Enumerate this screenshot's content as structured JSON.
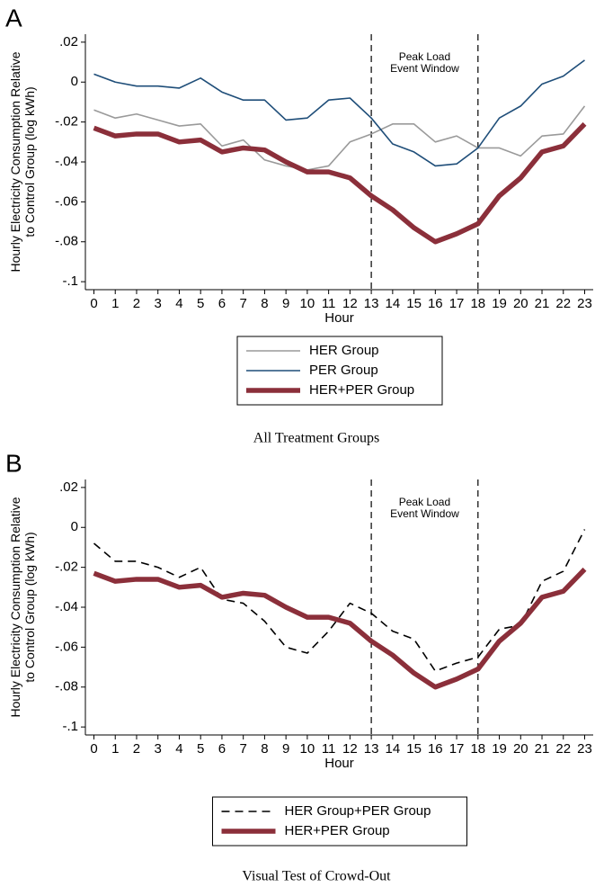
{
  "chart_data": [
    {
      "type": "line",
      "panel_label": "A",
      "caption": "All Treatment Groups",
      "ylabel": [
        "Hourly Electricity Consumption Relative",
        "to Control Group (log kWh)"
      ],
      "xlabel": "Hour",
      "annotation_lines": [
        "Peak Load",
        "Event Window"
      ],
      "vlines": [
        13,
        18
      ],
      "x": [
        0,
        1,
        2,
        3,
        4,
        5,
        6,
        7,
        8,
        9,
        10,
        11,
        12,
        13,
        14,
        15,
        16,
        17,
        18,
        19,
        20,
        21,
        22,
        23
      ],
      "xlim": [
        -0.4,
        23.4
      ],
      "xticks": [
        0,
        1,
        2,
        3,
        4,
        5,
        6,
        7,
        8,
        9,
        10,
        11,
        12,
        13,
        14,
        15,
        16,
        17,
        18,
        19,
        20,
        21,
        22,
        23
      ],
      "ylim": [
        -0.104,
        0.024
      ],
      "yticks": [
        {
          "value": 0.02,
          "label": ".02"
        },
        0,
        {
          "value": -0.02,
          "label": "-.02"
        },
        {
          "value": -0.04,
          "label": "-.04"
        },
        {
          "value": -0.06,
          "label": "-.06"
        },
        {
          "value": -0.08,
          "label": "-.08"
        },
        {
          "value": -0.1,
          "label": "-.1"
        }
      ],
      "series": [
        {
          "name": "HER Group",
          "color": "#9a9a9a",
          "width": 1.6,
          "dash": "solid",
          "values": [
            -0.014,
            -0.018,
            -0.016,
            -0.019,
            -0.022,
            -0.021,
            -0.032,
            -0.029,
            -0.039,
            -0.042,
            -0.044,
            -0.042,
            -0.03,
            -0.026,
            -0.021,
            -0.021,
            -0.03,
            -0.027,
            -0.033,
            -0.033,
            -0.037,
            -0.027,
            -0.026,
            -0.012
          ]
        },
        {
          "name": "PER Group",
          "color": "#1f4e79",
          "width": 1.6,
          "dash": "solid",
          "values": [
            0.004,
            0.0,
            -0.002,
            -0.002,
            -0.003,
            0.002,
            -0.005,
            -0.009,
            -0.009,
            -0.019,
            -0.018,
            -0.009,
            -0.008,
            -0.018,
            -0.031,
            -0.035,
            -0.042,
            -0.041,
            -0.033,
            -0.018,
            -0.012,
            -0.001,
            0.003,
            0.011
          ]
        },
        {
          "name": "HER+PER Group",
          "color": "#8b2f3a",
          "width": 5.5,
          "dash": "solid",
          "values": [
            -0.023,
            -0.027,
            -0.026,
            -0.026,
            -0.03,
            -0.029,
            -0.035,
            -0.033,
            -0.034,
            -0.04,
            -0.045,
            -0.045,
            -0.048,
            -0.057,
            -0.064,
            -0.073,
            -0.08,
            -0.076,
            -0.071,
            -0.057,
            -0.048,
            -0.035,
            -0.032,
            -0.021
          ]
        }
      ]
    },
    {
      "type": "line",
      "panel_label": "B",
      "caption": "Visual Test of Crowd-Out",
      "ylabel": [
        "Hourly Electricity Consumption Relative",
        "to Control Group (log kWh)"
      ],
      "xlabel": "Hour",
      "annotation_lines": [
        "Peak Load",
        "Event Window"
      ],
      "vlines": [
        13,
        18
      ],
      "x": [
        0,
        1,
        2,
        3,
        4,
        5,
        6,
        7,
        8,
        9,
        10,
        11,
        12,
        13,
        14,
        15,
        16,
        17,
        18,
        19,
        20,
        21,
        22,
        23
      ],
      "xlim": [
        -0.4,
        23.4
      ],
      "xticks": [
        0,
        1,
        2,
        3,
        4,
        5,
        6,
        7,
        8,
        9,
        10,
        11,
        12,
        13,
        14,
        15,
        16,
        17,
        18,
        19,
        20,
        21,
        22,
        23
      ],
      "ylim": [
        -0.104,
        0.024
      ],
      "yticks": [
        {
          "value": 0.02,
          "label": ".02"
        },
        0,
        {
          "value": -0.02,
          "label": "-.02"
        },
        {
          "value": -0.04,
          "label": "-.04"
        },
        {
          "value": -0.06,
          "label": "-.06"
        },
        {
          "value": -0.08,
          "label": "-.08"
        },
        {
          "value": -0.1,
          "label": "-.1"
        }
      ],
      "series": [
        {
          "name": "HER Group+PER Group",
          "color": "#000000",
          "width": 1.6,
          "dash": "dashed",
          "values": [
            -0.008,
            -0.017,
            -0.017,
            -0.02,
            -0.025,
            -0.02,
            -0.036,
            -0.038,
            -0.047,
            -0.06,
            -0.063,
            -0.052,
            -0.038,
            -0.043,
            -0.052,
            -0.056,
            -0.072,
            -0.068,
            -0.065,
            -0.051,
            -0.049,
            -0.027,
            -0.022,
            -0.001
          ]
        },
        {
          "name": "HER+PER Group",
          "color": "#8b2f3a",
          "width": 5.5,
          "dash": "solid",
          "values": [
            -0.023,
            -0.027,
            -0.026,
            -0.026,
            -0.03,
            -0.029,
            -0.035,
            -0.033,
            -0.034,
            -0.04,
            -0.045,
            -0.045,
            -0.048,
            -0.057,
            -0.064,
            -0.073,
            -0.08,
            -0.076,
            -0.071,
            -0.057,
            -0.048,
            -0.035,
            -0.032,
            -0.021
          ]
        }
      ]
    }
  ]
}
